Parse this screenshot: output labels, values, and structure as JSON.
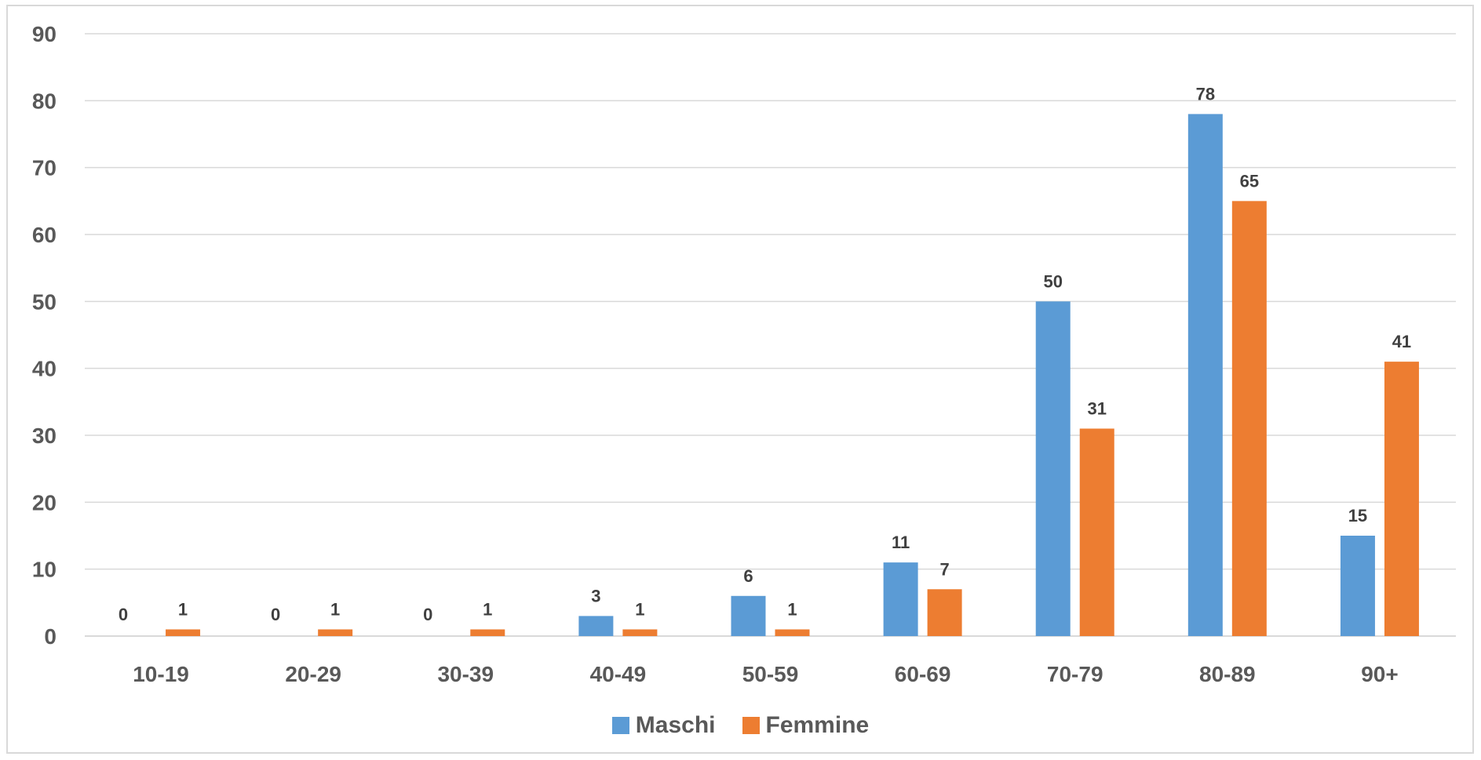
{
  "chart_data": {
    "type": "bar",
    "title": "",
    "xlabel": "",
    "ylabel": "",
    "categories": [
      "10-19",
      "20-29",
      "30-39",
      "40-49",
      "50-59",
      "60-69",
      "70-79",
      "80-89",
      "90+"
    ],
    "series": [
      {
        "name": "Maschi",
        "color": "#5b9bd5",
        "values": [
          0,
          0,
          0,
          3,
          6,
          11,
          50,
          78,
          15
        ]
      },
      {
        "name": "Femmine",
        "color": "#ed7d31",
        "values": [
          1,
          1,
          1,
          1,
          1,
          7,
          31,
          65,
          41
        ]
      }
    ],
    "ylim": [
      0,
      90
    ],
    "yticks": [
      0,
      10,
      20,
      30,
      40,
      50,
      60,
      70,
      80,
      90
    ],
    "grid": true,
    "gridline_color": "#d9d9d9",
    "data_labels": true,
    "legend_position": "bottom"
  }
}
